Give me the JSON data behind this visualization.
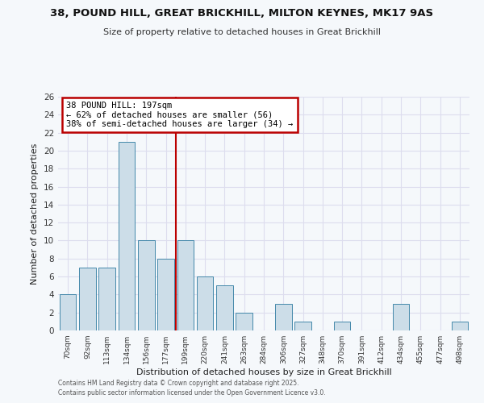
{
  "title": "38, POUND HILL, GREAT BRICKHILL, MILTON KEYNES, MK17 9AS",
  "subtitle": "Size of property relative to detached houses in Great Brickhill",
  "xlabel": "Distribution of detached houses by size in Great Brickhill",
  "ylabel": "Number of detached properties",
  "bar_labels": [
    "70sqm",
    "92sqm",
    "113sqm",
    "134sqm",
    "156sqm",
    "177sqm",
    "199sqm",
    "220sqm",
    "241sqm",
    "263sqm",
    "284sqm",
    "306sqm",
    "327sqm",
    "348sqm",
    "370sqm",
    "391sqm",
    "412sqm",
    "434sqm",
    "455sqm",
    "477sqm",
    "498sqm"
  ],
  "bar_values": [
    4,
    7,
    7,
    21,
    10,
    8,
    10,
    6,
    5,
    2,
    0,
    3,
    1,
    0,
    1,
    0,
    0,
    3,
    0,
    0,
    1
  ],
  "bar_color": "#ccdde8",
  "bar_edge_color": "#4488aa",
  "vline_x": 5.5,
  "vline_color": "#bb0000",
  "annotation_title": "38 POUND HILL: 197sqm",
  "annotation_line1": "← 62% of detached houses are smaller (56)",
  "annotation_line2": "38% of semi-detached houses are larger (34) →",
  "annotation_box_facecolor": "#ffffff",
  "annotation_box_edgecolor": "#bb0000",
  "ylim": [
    0,
    26
  ],
  "yticks": [
    0,
    2,
    4,
    6,
    8,
    10,
    12,
    14,
    16,
    18,
    20,
    22,
    24,
    26
  ],
  "bg_color": "#f5f8fb",
  "grid_color": "#ddddee",
  "footer1": "Contains HM Land Registry data © Crown copyright and database right 2025.",
  "footer2": "Contains public sector information licensed under the Open Government Licence v3.0."
}
